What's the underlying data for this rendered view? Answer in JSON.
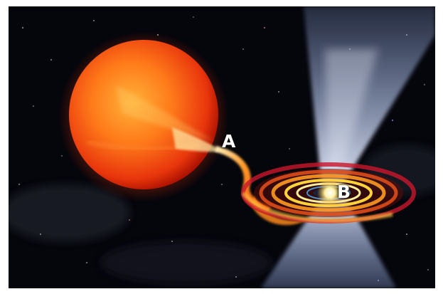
{
  "labels": {
    "a": "A",
    "b": "B"
  },
  "colors": {
    "space_background": "#05060c",
    "star_core": "#ff7a1a",
    "star_edge": "#d11f05",
    "disk_outer": "#c8162a",
    "disk_inner": "#ffd23a",
    "jet": "#b8c8f0"
  }
}
